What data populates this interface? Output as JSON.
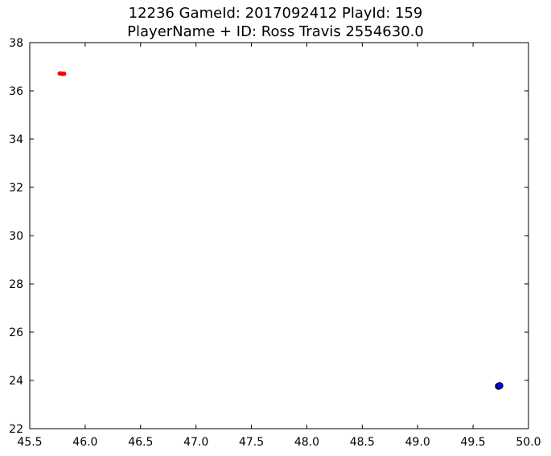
{
  "chart_data": {
    "type": "scatter",
    "title_line1": "12236 GameId: 2017092412 PlayId: 159",
    "title_line2": "PlayerName + ID: Ross Travis 2554630.0",
    "xlabel": "",
    "ylabel": "",
    "xlim": [
      45.5,
      50.0
    ],
    "ylim": [
      22,
      38
    ],
    "x_ticks": [
      45.5,
      46.0,
      46.5,
      47.0,
      47.5,
      48.0,
      48.5,
      49.0,
      49.5,
      50.0
    ],
    "x_tick_labels": [
      "45.5",
      "46.0",
      "46.5",
      "47.0",
      "47.5",
      "48.0",
      "48.5",
      "49.0",
      "49.5",
      "50.0"
    ],
    "y_ticks": [
      22,
      24,
      26,
      28,
      30,
      32,
      34,
      36,
      38
    ],
    "y_tick_labels": [
      "22",
      "24",
      "26",
      "28",
      "30",
      "32",
      "34",
      "36",
      "38"
    ],
    "grid": false,
    "series": [
      {
        "color": "#ff0000",
        "marker_size": "small",
        "points": [
          {
            "x": 45.77,
            "y": 36.72
          },
          {
            "x": 45.78,
            "y": 36.72
          },
          {
            "x": 45.79,
            "y": 36.71
          },
          {
            "x": 45.8,
            "y": 36.71
          },
          {
            "x": 45.81,
            "y": 36.71
          }
        ]
      },
      {
        "color": "#0000ff",
        "marker_size": "large",
        "points": [
          {
            "x": 49.73,
            "y": 23.76
          },
          {
            "x": 49.74,
            "y": 23.78
          }
        ]
      }
    ]
  }
}
